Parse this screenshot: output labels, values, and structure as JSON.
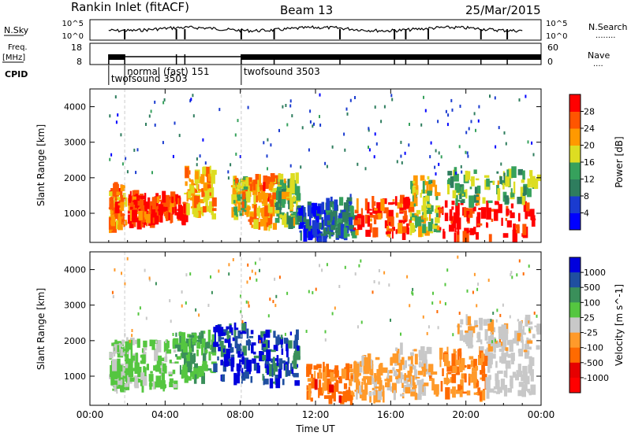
{
  "header": {
    "station": "Rankin Inlet (fitACF)",
    "beam": "Beam 13",
    "date": "25/Mar/2015"
  },
  "summary": {
    "nsky_label": "N.Sky",
    "nsearch_label": "N.Search",
    "nsearch_marker": "........",
    "sky_ticks": [
      "10^5",
      "10^0"
    ],
    "search_ticks": [
      "10^5",
      "10^0"
    ],
    "freq_label": "Freq.",
    "freq_unit": "[MHz]",
    "freq_ticks": [
      "18",
      "8"
    ],
    "nave_label": "Nave",
    "nave_marker": "....",
    "nave_ticks": [
      "60",
      "0"
    ],
    "cpid_label": "CPID",
    "cpid_segments": [
      {
        "label": "twofsound 3503",
        "start_h": 1.0,
        "row": 2
      },
      {
        "label": "normal (fast) 151",
        "start_h": 1.85,
        "row": 1
      },
      {
        "label": "twofsound 3503",
        "start_h": 8.05,
        "row": 1
      }
    ]
  },
  "colors": {
    "power_scale": [
      "#0000ff",
      "#1a3bd0",
      "#2e7d5e",
      "#36a15c",
      "#dddd22",
      "#ff9900",
      "#ff5500",
      "#ff0000"
    ],
    "velocity_scale": [
      "#0000dd",
      "#1f4fa0",
      "#3a8f5a",
      "#55c640",
      "#c8c8c8",
      "#ff9a2a",
      "#ff6a00",
      "#e60000",
      "#ff0000"
    ]
  },
  "chart_data": [
    {
      "type": "heatmap",
      "title": "Power",
      "xlabel": "",
      "ylabel": "Slant Range [km]",
      "xlim": [
        0,
        24
      ],
      "ylim": [
        180,
        4500
      ],
      "x_ticks": [
        "00:00",
        "04:00",
        "08:00",
        "12:00",
        "16:00",
        "20:00",
        "00:00"
      ],
      "y_ticks": [
        "1000",
        "2000",
        "3000",
        "4000"
      ],
      "colorbar_label": "Power [dB]",
      "colorbar_ticks": [
        "4",
        "8",
        "12",
        "16",
        "20",
        "24",
        "28"
      ],
      "value_range": [
        0,
        30
      ],
      "segments": [
        {
          "t0": 1.0,
          "t1": 1.8,
          "r0": 600,
          "r1": 1800,
          "value": 22
        },
        {
          "t0": 2.0,
          "t1": 3.2,
          "r0": 700,
          "r1": 1500,
          "value": 26
        },
        {
          "t0": 3.2,
          "t1": 5.0,
          "r0": 800,
          "r1": 1500,
          "value": 27
        },
        {
          "t0": 5.0,
          "t1": 6.5,
          "r0": 900,
          "r1": 2200,
          "value": 20
        },
        {
          "t0": 7.5,
          "t1": 8.4,
          "r0": 900,
          "r1": 2000,
          "value": 18
        },
        {
          "t0": 8.4,
          "t1": 9.8,
          "r0": 600,
          "r1": 2000,
          "value": 22
        },
        {
          "t0": 9.8,
          "t1": 11.0,
          "r0": 700,
          "r1": 2000,
          "value": 15
        },
        {
          "t0": 11.0,
          "t1": 12.5,
          "r0": 300,
          "r1": 1200,
          "value": 6
        },
        {
          "t0": 12.5,
          "t1": 14.0,
          "r0": 300,
          "r1": 1400,
          "value": 10
        },
        {
          "t0": 14.0,
          "t1": 17.0,
          "r0": 400,
          "r1": 1400,
          "value": 26
        },
        {
          "t0": 17.0,
          "t1": 18.5,
          "r0": 400,
          "r1": 2000,
          "value": 16
        },
        {
          "t0": 18.5,
          "t1": 23.5,
          "r0": 300,
          "r1": 1300,
          "value": 29
        },
        {
          "t0": 19.0,
          "t1": 23.8,
          "r0": 1300,
          "r1": 2200,
          "value": 14
        }
      ]
    },
    {
      "type": "heatmap",
      "title": "Velocity",
      "xlabel": "Time UT",
      "ylabel": "Slant Range [km]",
      "xlim": [
        0,
        24
      ],
      "ylim": [
        180,
        4500
      ],
      "x_ticks": [
        "00:00",
        "04:00",
        "08:00",
        "12:00",
        "16:00",
        "20:00",
        "00:00"
      ],
      "y_ticks": [
        "1000",
        "2000",
        "3000",
        "4000"
      ],
      "colorbar_label": "Velocity [m s^-1]",
      "colorbar_ticks": [
        "1000",
        "500",
        "100",
        "25",
        "-25",
        "-100",
        "-500",
        "-1000"
      ],
      "value_range": [
        -1000,
        1000
      ],
      "segments": [
        {
          "t0": 1.0,
          "t1": 2.0,
          "r0": 600,
          "r1": 2000,
          "value": 120
        },
        {
          "t0": 2.0,
          "t1": 4.5,
          "r0": 700,
          "r1": 2000,
          "value": 150
        },
        {
          "t0": 4.5,
          "t1": 6.5,
          "r0": 900,
          "r1": 2200,
          "value": 300
        },
        {
          "t0": 6.5,
          "t1": 9.0,
          "r0": 900,
          "r1": 2400,
          "value": 800
        },
        {
          "t0": 9.0,
          "t1": 11.0,
          "r0": 800,
          "r1": 2200,
          "value": 700
        },
        {
          "t0": 11.5,
          "t1": 14.0,
          "r0": 300,
          "r1": 1300,
          "value": -400
        },
        {
          "t0": 14.0,
          "t1": 16.0,
          "r0": 400,
          "r1": 1500,
          "value": -150
        },
        {
          "t0": 16.0,
          "t1": 18.0,
          "r0": 400,
          "r1": 1800,
          "value": -100
        },
        {
          "t0": 18.0,
          "t1": 21.0,
          "r0": 400,
          "r1": 1700,
          "value": -300
        },
        {
          "t0": 21.0,
          "t1": 23.5,
          "r0": 500,
          "r1": 2000,
          "value": 10
        },
        {
          "t0": 19.5,
          "t1": 23.8,
          "r0": 1700,
          "r1": 2600,
          "value": -80
        }
      ]
    }
  ]
}
